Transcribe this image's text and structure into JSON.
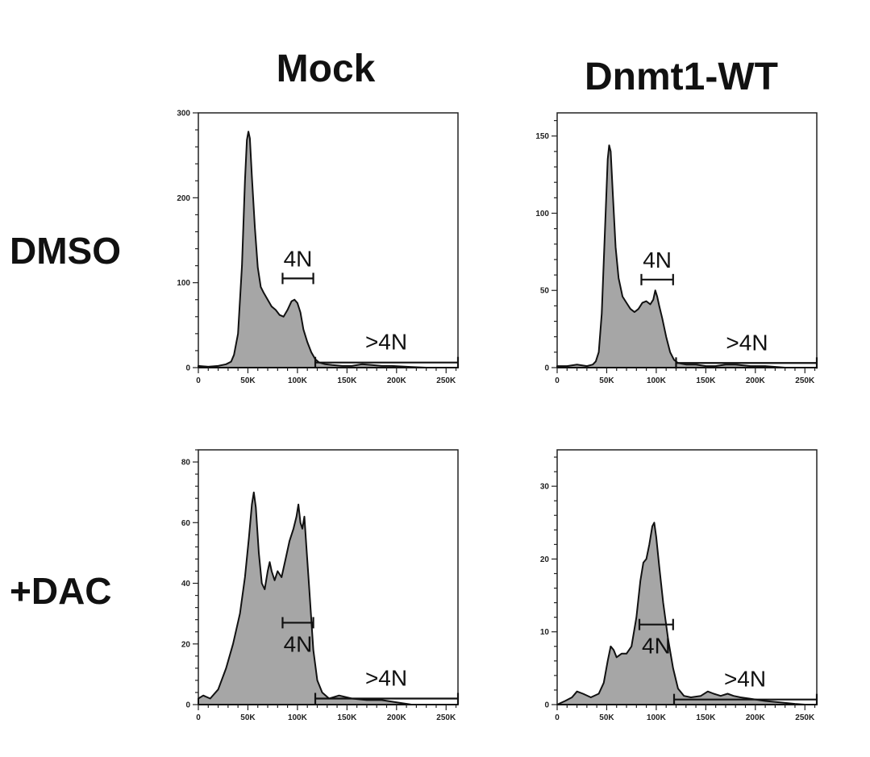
{
  "column_titles": [
    "Mock",
    "Dnmt1-WT"
  ],
  "row_titles": [
    "DMSO",
    "+DAC"
  ],
  "colors": {
    "fill": "#a6a6a6",
    "line": "#111111"
  },
  "chart_data": [
    {
      "type": "area",
      "title": "",
      "xlabel": "",
      "ylabel": "",
      "xlim": [
        0,
        262000
      ],
      "ylim": [
        0,
        300
      ],
      "xticks": [
        0,
        50000,
        100000,
        150000,
        200000,
        250000
      ],
      "xtick_labels": [
        "0",
        "50K",
        "100K",
        "150K",
        "200K",
        "250K"
      ],
      "yticks": [
        0,
        100,
        200,
        300
      ],
      "ytick_labels": [
        "0",
        "100",
        "200",
        "300"
      ],
      "x": [
        0,
        10000,
        20000,
        28000,
        33000,
        36000,
        40000,
        44000,
        47000,
        49000,
        50500,
        52000,
        54000,
        57000,
        60000,
        63000,
        66000,
        70000,
        74000,
        78000,
        82000,
        86000,
        90000,
        94000,
        97000,
        100000,
        103000,
        106000,
        110000,
        114000,
        118000,
        122000,
        128000,
        135000,
        145000,
        155000,
        165000,
        175000,
        185000,
        195000,
        210000,
        230000,
        262000
      ],
      "y": [
        2,
        1,
        2,
        4,
        7,
        15,
        40,
        120,
        220,
        268,
        278,
        270,
        225,
        165,
        118,
        95,
        88,
        80,
        72,
        68,
        62,
        60,
        68,
        78,
        80,
        76,
        65,
        45,
        30,
        18,
        10,
        6,
        4,
        3,
        2,
        2,
        4,
        3,
        2,
        2,
        1,
        0,
        0
      ],
      "gates": [
        {
          "label": "4N",
          "x_range": [
            85000,
            116000
          ],
          "y": 105
        },
        {
          "label": ">4N",
          "x_range": [
            118000,
            262000
          ],
          "y": 6
        }
      ]
    },
    {
      "type": "area",
      "title": "",
      "xlabel": "",
      "ylabel": "",
      "xlim": [
        0,
        262000
      ],
      "ylim": [
        0,
        165
      ],
      "xticks": [
        0,
        50000,
        100000,
        150000,
        200000,
        250000
      ],
      "xtick_labels": [
        "0",
        "50K",
        "100K",
        "150K",
        "200K",
        "250K"
      ],
      "yticks": [
        0,
        50,
        100,
        150
      ],
      "ytick_labels": [
        "0",
        "50",
        "100",
        "150"
      ],
      "x": [
        0,
        10000,
        20000,
        30000,
        36000,
        39000,
        42000,
        45000,
        48000,
        51000,
        52500,
        54000,
        56000,
        59000,
        62000,
        66000,
        70000,
        74000,
        78000,
        82000,
        86000,
        90000,
        94000,
        97000,
        99000,
        101000,
        103000,
        106000,
        110000,
        114000,
        118000,
        122000,
        130000,
        140000,
        150000,
        160000,
        170000,
        180000,
        195000,
        210000,
        230000,
        262000
      ],
      "y": [
        1,
        1,
        2,
        1,
        2,
        4,
        10,
        35,
        85,
        135,
        144,
        140,
        115,
        78,
        58,
        46,
        42,
        38,
        36,
        38,
        42,
        43,
        41,
        44,
        50,
        46,
        40,
        32,
        20,
        10,
        5,
        3,
        2,
        2,
        1,
        1,
        2,
        2,
        1,
        1,
        0,
        0
      ],
      "gates": [
        {
          "label": "4N",
          "x_range": [
            85000,
            117000
          ],
          "y": 57
        },
        {
          "label": ">4N",
          "x_range": [
            120000,
            262000
          ],
          "y": 3
        }
      ]
    },
    {
      "type": "area",
      "title": "",
      "xlabel": "",
      "ylabel": "",
      "xlim": [
        0,
        262000
      ],
      "ylim": [
        0,
        84
      ],
      "xticks": [
        0,
        50000,
        100000,
        150000,
        200000,
        250000
      ],
      "xtick_labels": [
        "0",
        "50K",
        "100K",
        "150K",
        "200K",
        "250K"
      ],
      "yticks": [
        0,
        20,
        40,
        60,
        80
      ],
      "ytick_labels": [
        "0",
        "20",
        "40",
        "60",
        "80"
      ],
      "x": [
        0,
        5000,
        12000,
        20000,
        28000,
        35000,
        42000,
        47000,
        51000,
        54000,
        56000,
        58000,
        61000,
        64000,
        67000,
        70000,
        72000,
        74000,
        77000,
        80000,
        84000,
        88000,
        92000,
        96000,
        99000,
        101000,
        103000,
        105000,
        107000,
        109000,
        112000,
        116000,
        120000,
        125000,
        132000,
        142000,
        155000,
        170000,
        185000,
        195000,
        205000,
        215000,
        230000,
        262000
      ],
      "y": [
        2,
        3,
        2,
        5,
        12,
        20,
        30,
        42,
        55,
        66,
        70,
        65,
        50,
        40,
        38,
        44,
        47,
        44,
        41,
        44,
        42,
        48,
        54,
        58,
        62,
        66,
        60,
        58,
        62,
        52,
        38,
        18,
        8,
        4,
        2,
        3,
        2,
        1.5,
        1.5,
        1,
        0.5,
        0,
        0,
        0
      ],
      "gates": [
        {
          "label": "4N",
          "x_range": [
            85000,
            116000
          ],
          "y": 27
        },
        {
          "label": ">4N",
          "x_range": [
            118000,
            262000
          ],
          "y": 2
        }
      ]
    },
    {
      "type": "area",
      "title": "",
      "xlabel": "",
      "ylabel": "",
      "xlim": [
        0,
        262000
      ],
      "ylim": [
        0,
        35
      ],
      "xticks": [
        0,
        50000,
        100000,
        150000,
        200000,
        250000
      ],
      "xtick_labels": [
        "0",
        "50K",
        "100K",
        "150K",
        "200K",
        "250K"
      ],
      "yticks": [
        0,
        10,
        20,
        30
      ],
      "ytick_labels": [
        "0",
        "10",
        "20",
        "30"
      ],
      "x": [
        0,
        8000,
        15000,
        20000,
        26000,
        34000,
        42000,
        47000,
        51000,
        54000,
        57000,
        60000,
        65000,
        70000,
        75000,
        80000,
        84000,
        87000,
        90000,
        93000,
        96000,
        98000,
        100000,
        103000,
        107000,
        112000,
        117000,
        122000,
        128000,
        135000,
        145000,
        152000,
        158000,
        165000,
        172000,
        178000,
        185000,
        195000,
        210000,
        225000,
        240000,
        250000,
        262000
      ],
      "y": [
        0,
        0.5,
        1,
        1.8,
        1.5,
        1,
        1.5,
        3,
        6,
        8,
        7.5,
        6.5,
        7,
        7,
        8,
        12,
        17,
        19.5,
        20,
        22,
        24.5,
        25,
        23,
        19,
        14,
        9,
        5,
        2.2,
        1.2,
        1,
        1.2,
        1.8,
        1.5,
        1.2,
        1.5,
        1.2,
        1,
        0.8,
        0.5,
        0.3,
        0.1,
        0,
        0
      ],
      "gates": [
        {
          "label": "4N",
          "x_range": [
            83000,
            117000
          ],
          "y": 11
        },
        {
          "label": ">4N",
          "x_range": [
            118000,
            262000
          ],
          "y": 0.7
        }
      ]
    }
  ]
}
